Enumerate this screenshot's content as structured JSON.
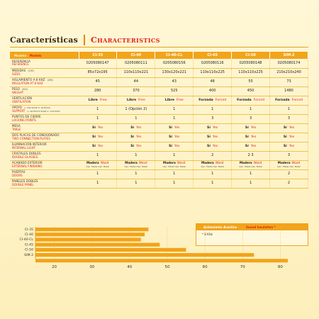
{
  "header": {
    "title_es": "Características",
    "title_en": "Characteristics"
  },
  "table": {
    "model_header": {
      "es": "Modelo",
      "en": "Models"
    },
    "models": [
      "CI-35",
      "CI-40",
      "CI-40-CL",
      "CI-45",
      "CI-50",
      "SIM-2"
    ],
    "rows": [
      {
        "es": "Referencia",
        "en": "Reference",
        "type": "plain",
        "values": [
          "0205080147",
          "0205080111",
          "0205080156",
          "0205080116",
          "0205080148",
          "0205080174"
        ]
      },
      {
        "es": "Medidas",
        "en": "Sizes",
        "unit": "(cm)",
        "type": "plain",
        "values": [
          "85x72x195",
          "110x110x221",
          "130x120x221",
          "110x110x225",
          "110x110x225",
          "210x210x240"
        ]
      },
      {
        "es": "Aislamiento a 8 KHz",
        "en": "Insulation at 8 KHz",
        "unit": "(dB)",
        "type": "plain",
        "values": [
          "45",
          "44",
          "43",
          "48",
          "55",
          "73"
        ]
      },
      {
        "es": "Peso",
        "en": "Weight",
        "unit": "(Kg)",
        "type": "plain",
        "values": [
          "280",
          "370",
          "525",
          "400",
          "450",
          "1480"
        ]
      },
      {
        "es": "Ventilación",
        "en": "Ventilation",
        "type": "pair",
        "values": [
          [
            "Libre",
            "Free"
          ],
          [
            "Libre",
            "Free"
          ],
          [
            "Libre",
            "Free"
          ],
          [
            "Forzada",
            "Forced"
          ],
          [
            "Forzada",
            "Forced"
          ],
          [
            "Forzada",
            "Forced"
          ]
        ]
      },
      {
        "es": "Apoyo",
        "en": "Support",
        "note_es": "1: Sin base  2: Ruedas",
        "note_en": "1: Without base  2: Castors",
        "type": "plain",
        "values": [
          "1",
          "1 (Opción 2)",
          "1",
          "1",
          "1",
          "1"
        ]
      },
      {
        "es": "Puntos de cierre",
        "en": "Locking points",
        "type": "plain",
        "values": [
          "1",
          "1",
          "1",
          "3",
          "3",
          "3"
        ]
      },
      {
        "es": "Mesa",
        "en": "Table",
        "type": "pair",
        "values": [
          [
            "Sí",
            "Yes"
          ],
          [
            "Sí",
            "Yes"
          ],
          [
            "Sí",
            "Yes"
          ],
          [
            "Sí",
            "Yes"
          ],
          [
            "Sí",
            "Yes"
          ],
          [
            "Sí",
            "Yes"
          ]
        ]
      },
      {
        "es": "Dos placas de conexionado",
        "en": "Two connection plates",
        "type": "pair",
        "values": [
          [
            "Sí",
            "Yes"
          ],
          [
            "Sí",
            "Yes"
          ],
          [
            "Sí",
            "Yes"
          ],
          [
            "Sí",
            "Yes"
          ],
          [
            "Sí",
            "Yes"
          ],
          [
            "Sí",
            "Yes"
          ]
        ]
      },
      {
        "es": "Iluminación interior",
        "en": "Internal light",
        "type": "pair",
        "values": [
          [
            "Sí",
            "Yes"
          ],
          [
            "Sí",
            "Yes"
          ],
          [
            "Sí",
            "Yes"
          ],
          [
            "Sí",
            "Yes"
          ],
          [
            "Sí",
            "Yes"
          ],
          [
            "Sí",
            "Yes"
          ]
        ]
      },
      {
        "es": "Cristales dobles",
        "en": "Double glasses",
        "type": "plain",
        "values": [
          "1",
          "1",
          "1",
          "2",
          "2  3",
          "3"
        ]
      },
      {
        "es": "Acabado exterior",
        "en": "External finishing",
        "type": "multi",
        "values": [
          [
            "Madera",
            "Wood",
            "Opc. Metal",
            "Opt. Metal"
          ],
          [
            "Madera",
            "Wood",
            "Opc. Metal",
            "Opt. Metal"
          ],
          [
            "Madera",
            "Wood",
            "Opc. Metal",
            "Opt. Metal"
          ],
          [
            "Madera",
            "Wood",
            "Opc. Metal",
            "Opt. Metal"
          ],
          [
            "Madera",
            "Wood",
            "Opc. Metal",
            "Opt. Metal"
          ],
          [
            "Madera",
            "Wood",
            "Opc. Metal",
            "Opt. Metal"
          ]
        ]
      },
      {
        "es": "Puertas",
        "en": "Doors",
        "type": "plain",
        "values": [
          "1",
          "1",
          "1",
          "1",
          "1",
          "2"
        ]
      },
      {
        "es": "Paneles dobles",
        "en": "Double panel",
        "type": "plain",
        "values": [
          "1",
          "1",
          "1",
          "1",
          "1",
          "2"
        ]
      }
    ]
  },
  "legend": {
    "es": "Aislamiento Acústico",
    "en": "Sound Insulation *",
    "note": "* 8 KHz"
  },
  "chart_data": {
    "type": "bar",
    "orientation": "horizontal",
    "categories": [
      "CI-35",
      "CI-40",
      "CI-40-CL",
      "CI-45",
      "CI-50",
      "SIM-2"
    ],
    "values": [
      45,
      44,
      43,
      48,
      55,
      73
    ],
    "xticks": [
      "20",
      "30",
      "40",
      "50",
      "60",
      "70",
      "80"
    ],
    "xlim": [
      15,
      82
    ],
    "color": "#f2a41a"
  }
}
